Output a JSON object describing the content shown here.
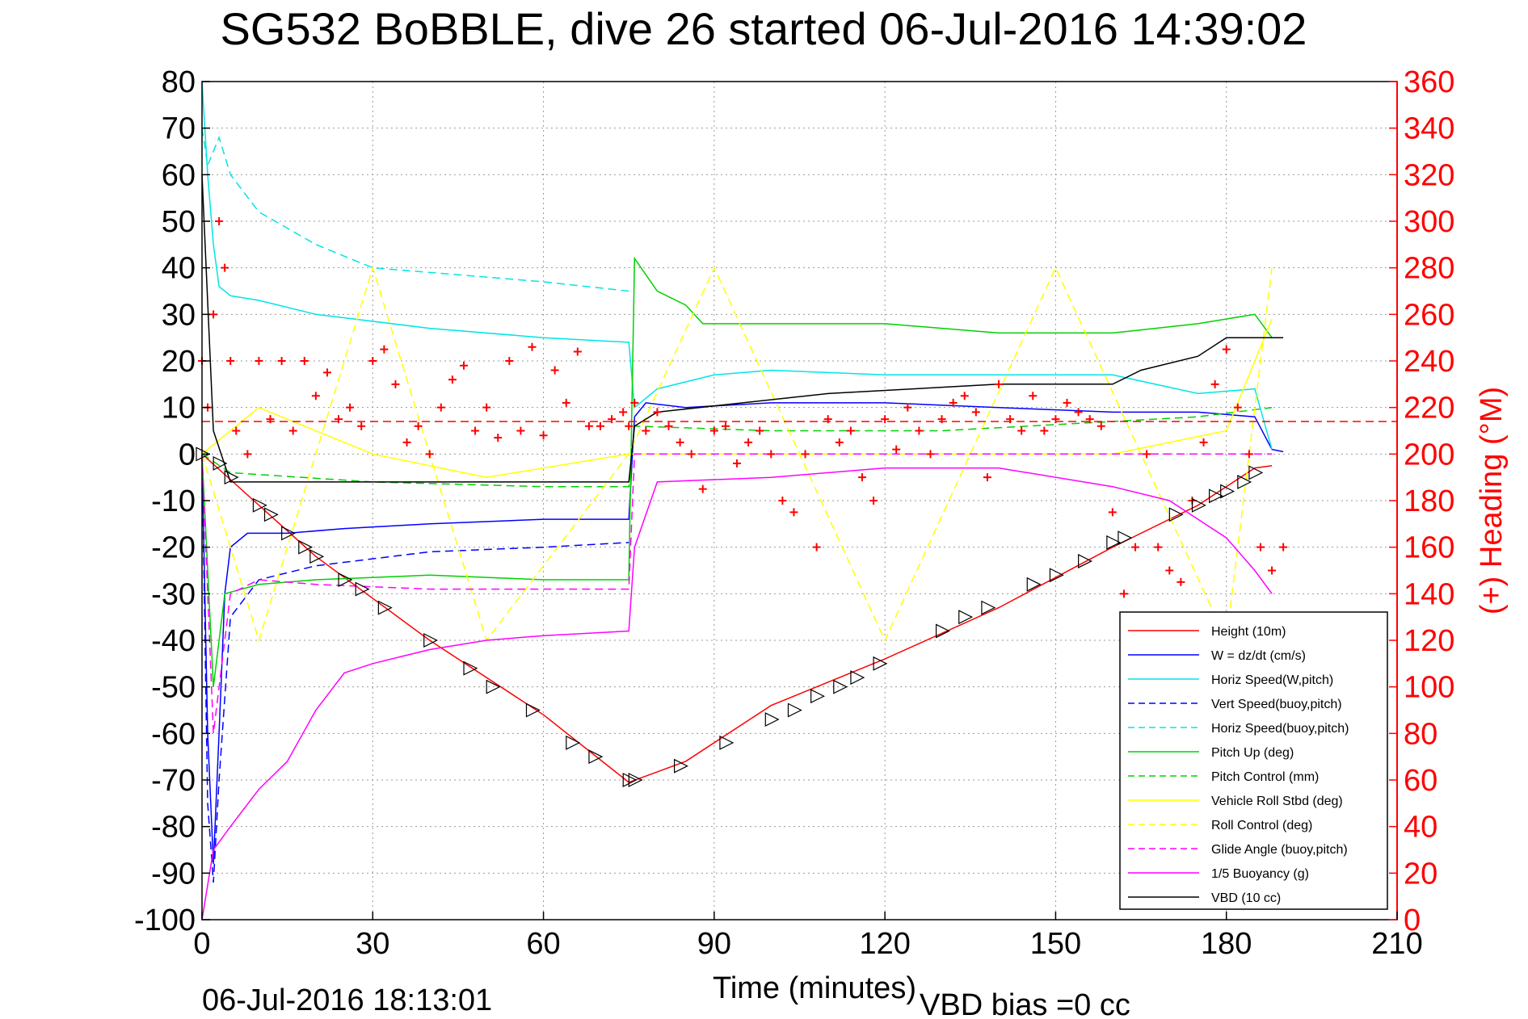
{
  "chart_data": {
    "type": "line",
    "title": "SG532 BoBBLE, dive 26 started 06-Jul-2016 14:39:02",
    "xlabel": "Time (minutes)",
    "ylabel_right": "(+) Heading (°M)",
    "footer_left": "06-Jul-2016 18:13:01",
    "footer_right": "VBD bias =0 cc",
    "xlim": [
      0,
      210
    ],
    "ylim": [
      -100,
      80
    ],
    "ylim_right": [
      0,
      360
    ],
    "x_ticks": [
      "0",
      "30",
      "60",
      "90",
      "120",
      "150",
      "180",
      "210"
    ],
    "y_ticks": [
      "80",
      "70",
      "60",
      "50",
      "40",
      "30",
      "20",
      "10",
      "0",
      "-10",
      "-20",
      "-30",
      "-40",
      "-50",
      "-60",
      "-70",
      "-80",
      "-90",
      "-100"
    ],
    "y_ticks_right": [
      "360",
      "340",
      "320",
      "300",
      "280",
      "260",
      "240",
      "220",
      "200",
      "180",
      "160",
      "140",
      "120",
      "100",
      "80",
      "60",
      "40",
      "20",
      "0"
    ],
    "grid": true,
    "legend_position": "bottom-right",
    "series": [
      {
        "name": "Height (10m)",
        "color": "#ff0000",
        "style": "solid",
        "x": [
          0,
          5,
          20,
          40,
          60,
          75,
          85,
          100,
          120,
          140,
          160,
          175,
          185,
          188
        ],
        "y": [
          0,
          -5.5,
          -22,
          -40,
          -56,
          -70.5,
          -66,
          -54,
          -44,
          -33,
          -20,
          -11,
          -3,
          -2.5
        ]
      },
      {
        "name": "W = dz/dt (cm/s)",
        "color": "#0000ff",
        "style": "solid",
        "x": [
          0,
          1,
          2,
          3,
          4,
          5,
          8,
          15,
          25,
          40,
          60,
          75,
          76,
          78,
          85,
          100,
          120,
          140,
          160,
          175,
          185,
          188,
          190
        ],
        "y": [
          0,
          -60,
          -88,
          -60,
          -30,
          -20,
          -17,
          -17,
          -16,
          -15,
          -14,
          -14,
          8,
          11,
          10,
          11,
          11,
          10,
          9,
          9,
          8,
          1,
          0.5
        ]
      },
      {
        "name": "Horiz Speed(W,pitch)",
        "color": "#00e5e5",
        "style": "solid",
        "x": [
          0,
          1,
          2,
          3,
          5,
          10,
          20,
          40,
          60,
          75,
          76,
          80,
          90,
          100,
          120,
          140,
          160,
          175,
          185,
          188
        ],
        "y": [
          80,
          60,
          45,
          36,
          34,
          33,
          30,
          27,
          25,
          24,
          10,
          14,
          17,
          18,
          17,
          17,
          17,
          13,
          14,
          1
        ]
      },
      {
        "name": "Vert Speed(buoy,pitch)",
        "color": "#0000ff",
        "style": "dashed",
        "x": [
          0,
          1,
          2,
          3,
          5,
          10,
          20,
          40,
          60,
          75
        ],
        "y": [
          0,
          -75,
          -92,
          -70,
          -35,
          -27,
          -24,
          -21,
          -20,
          -19
        ]
      },
      {
        "name": "Horiz Speed(buoy,pitch)",
        "color": "#00e5e5",
        "style": "dashed",
        "x": [
          0,
          1,
          3,
          5,
          10,
          20,
          30,
          40,
          60,
          75
        ],
        "y": [
          70,
          62,
          68,
          60,
          52,
          45,
          40,
          39,
          37,
          35
        ]
      },
      {
        "name": "Pitch Up (deg)",
        "color": "#00d000",
        "style": "solid",
        "x": [
          0,
          2,
          4,
          10,
          20,
          40,
          60,
          75,
          76,
          80,
          85,
          88,
          100,
          120,
          140,
          160,
          175,
          185,
          188
        ],
        "y": [
          0,
          -50,
          -30,
          -28,
          -27,
          -26,
          -27,
          -27,
          42,
          35,
          32,
          28,
          28,
          28,
          26,
          26,
          28,
          30,
          25
        ]
      },
      {
        "name": "Pitch Control (mm)",
        "color": "#00d000",
        "style": "dashed",
        "x": [
          0,
          5,
          30,
          60,
          75,
          76,
          100,
          130,
          160,
          175,
          188
        ],
        "y": [
          0,
          -4,
          -6,
          -7,
          -7,
          6,
          5,
          5,
          7,
          8,
          10
        ]
      },
      {
        "name": "Vehicle Roll Stbd (deg)",
        "color": "#ffff00",
        "style": "solid",
        "x": [
          0,
          10,
          30,
          50,
          75,
          76,
          100,
          130,
          160,
          180,
          188
        ],
        "y": [
          0,
          10,
          0,
          -5,
          0,
          0,
          0,
          0,
          0,
          5,
          29
        ]
      },
      {
        "name": "Roll Control (deg)",
        "color": "#ffff00",
        "style": "dashed",
        "x": [
          0,
          10,
          30,
          50,
          75,
          90,
          120,
          150,
          180,
          188
        ],
        "y": [
          0,
          -40,
          40,
          -40,
          0,
          40,
          -40,
          40,
          -40,
          40
        ]
      },
      {
        "name": "Glide Angle (buoy,pitch)",
        "color": "#ff00ff",
        "style": "dashed",
        "x": [
          0,
          2,
          5,
          10,
          20,
          40,
          60,
          75,
          76,
          188
        ],
        "y": [
          0,
          -60,
          -30,
          -27,
          -28,
          -29,
          -29,
          -29,
          0,
          0
        ]
      },
      {
        "name": "1/5 Buoyancy (g)",
        "color": "#ff00ff",
        "style": "solid",
        "x": [
          0,
          2,
          5,
          10,
          15,
          20,
          25,
          30,
          40,
          50,
          60,
          75,
          76,
          80,
          100,
          120,
          140,
          160,
          170,
          180,
          185,
          188
        ],
        "y": [
          -100,
          -85,
          -80,
          -72,
          -66,
          -55,
          -47,
          -45,
          -42,
          -40,
          -39,
          -38,
          -20,
          -6,
          -5,
          -3,
          -3,
          -7,
          -10,
          -18,
          -25,
          -30
        ]
      },
      {
        "name": "VBD (10 cc)",
        "color": "#000000",
        "style": "solid",
        "x": [
          0,
          2,
          5,
          75,
          76,
          80,
          110,
          140,
          160,
          165,
          175,
          180,
          190
        ],
        "y": [
          60,
          5,
          -6,
          -6,
          6,
          9,
          13,
          15,
          15,
          18,
          21,
          25,
          25
        ]
      }
    ],
    "heading_series": {
      "name": "Heading",
      "color": "#ff0000",
      "marker": "+",
      "axis": "right",
      "mean": 214,
      "x": [
        0,
        1,
        2,
        3,
        4,
        5,
        6,
        8,
        10,
        12,
        14,
        16,
        18,
        20,
        22,
        24,
        26,
        28,
        30,
        32,
        34,
        36,
        38,
        40,
        42,
        44,
        46,
        48,
        50,
        52,
        54,
        56,
        58,
        60,
        62,
        64,
        66,
        68,
        70,
        72,
        74,
        75,
        76,
        78,
        80,
        82,
        84,
        86,
        88,
        90,
        92,
        94,
        96,
        98,
        100,
        102,
        104,
        106,
        108,
        110,
        112,
        114,
        116,
        118,
        120,
        122,
        124,
        126,
        128,
        130,
        132,
        134,
        136,
        138,
        140,
        142,
        144,
        146,
        148,
        150,
        152,
        154,
        156,
        158,
        160,
        162,
        164,
        166,
        168,
        170,
        172,
        174,
        176,
        178,
        180,
        182,
        184,
        186,
        188,
        190
      ],
      "y": [
        240,
        220,
        260,
        300,
        280,
        240,
        210,
        200,
        240,
        215,
        240,
        210,
        240,
        225,
        235,
        215,
        220,
        212,
        240,
        245,
        230,
        205,
        212,
        200,
        220,
        232,
        238,
        210,
        220,
        207,
        240,
        210,
        246,
        208,
        236,
        222,
        244,
        212,
        212,
        215,
        218,
        212,
        222,
        210,
        218,
        212,
        205,
        200,
        185,
        210,
        212,
        196,
        205,
        210,
        200,
        180,
        175,
        200,
        160,
        215,
        205,
        210,
        190,
        180,
        215,
        202,
        220,
        210,
        200,
        215,
        222,
        225,
        218,
        190,
        230,
        215,
        210,
        225,
        210,
        215,
        222,
        218,
        215,
        212,
        175,
        140,
        160,
        200,
        160,
        150,
        145,
        180,
        205,
        230,
        245,
        220,
        200,
        160,
        150,
        160
      ]
    },
    "position_markers": {
      "symbol": "triangle",
      "x": [
        0,
        3,
        5,
        10,
        12,
        15,
        18,
        20,
        25,
        28,
        32,
        40,
        47,
        51,
        58,
        65,
        69,
        75,
        76,
        84,
        92,
        100,
        104,
        108,
        112,
        115,
        119,
        130,
        134,
        138,
        146,
        150,
        155,
        160,
        162,
        171,
        175,
        178,
        180,
        183,
        185
      ],
      "y": [
        0,
        -2,
        -5,
        -11,
        -13,
        -17,
        -20,
        -22,
        -27,
        -29,
        -33,
        -40,
        -46,
        -50,
        -55,
        -62,
        -65,
        -70,
        -70,
        -67,
        -62,
        -57,
        -55,
        -52,
        -50,
        -48,
        -45,
        -38,
        -35,
        -33,
        -28,
        -26,
        -23,
        -19,
        -18,
        -13,
        -11,
        -9,
        -8,
        -6,
        -4
      ]
    }
  }
}
